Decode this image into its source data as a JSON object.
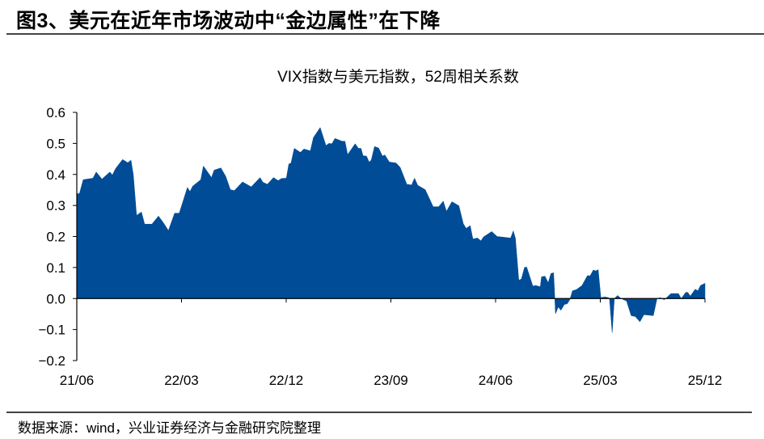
{
  "header": {
    "title": "图3、美元在近年市场波动中“金边属性”在下降"
  },
  "footer": {
    "source": "数据来源：wind，兴业证券经济与金融研究院整理"
  },
  "colors": {
    "area": "#004C97",
    "axis": "#000000"
  },
  "chart_data": {
    "type": "area",
    "title": "VIX指数与美元指数，52周相关系数",
    "xlabel": "",
    "ylabel": "",
    "x_unit": "decimal year",
    "xlim": [
      2021.417,
      2025.917
    ],
    "ylim": [
      -0.2,
      0.6
    ],
    "yticks": [
      -0.2,
      -0.1,
      0.0,
      0.1,
      0.2,
      0.3,
      0.4,
      0.5,
      0.6
    ],
    "ytick_labels": [
      "−0.2",
      "−0.1",
      "0.0",
      "0.1",
      "0.2",
      "0.3",
      "0.4",
      "0.5",
      "0.6"
    ],
    "xticks": [
      2021.417,
      2022.167,
      2022.917,
      2023.667,
      2024.417,
      2025.167,
      2025.917
    ],
    "xtick_labels": [
      "21/06",
      "22/03",
      "22/12",
      "23/09",
      "24/06",
      "25/03",
      "25/12"
    ],
    "grid": false,
    "legend": "none",
    "series": [
      {
        "name": "VIX指数与美元指数52周相关系数",
        "points": [
          [
            2021.417,
            0.338
          ],
          [
            2021.436,
            0.338
          ],
          [
            2021.463,
            0.383
          ],
          [
            2021.533,
            0.388
          ],
          [
            2021.556,
            0.408
          ],
          [
            2021.597,
            0.385
          ],
          [
            2021.654,
            0.408
          ],
          [
            2021.672,
            0.398
          ],
          [
            2021.695,
            0.419
          ],
          [
            2021.745,
            0.448
          ],
          [
            2021.782,
            0.438
          ],
          [
            2021.805,
            0.446
          ],
          [
            2021.822,
            0.399
          ],
          [
            2021.845,
            0.268
          ],
          [
            2021.88,
            0.279
          ],
          [
            2021.903,
            0.24
          ],
          [
            2021.955,
            0.24
          ],
          [
            2022.002,
            0.266
          ],
          [
            2022.041,
            0.242
          ],
          [
            2022.073,
            0.219
          ],
          [
            2022.118,
            0.275
          ],
          [
            2022.151,
            0.275
          ],
          [
            2022.209,
            0.358
          ],
          [
            2022.228,
            0.345
          ],
          [
            2022.247,
            0.362
          ],
          [
            2022.305,
            0.383
          ],
          [
            2022.324,
            0.427
          ],
          [
            2022.382,
            0.39
          ],
          [
            2022.401,
            0.414
          ],
          [
            2022.449,
            0.421
          ],
          [
            2022.484,
            0.394
          ],
          [
            2022.517,
            0.351
          ],
          [
            2022.546,
            0.348
          ],
          [
            2022.604,
            0.376
          ],
          [
            2022.666,
            0.36
          ],
          [
            2022.73,
            0.39
          ],
          [
            2022.749,
            0.375
          ],
          [
            2022.782,
            0.368
          ],
          [
            2022.826,
            0.39
          ],
          [
            2022.859,
            0.38
          ],
          [
            2022.884,
            0.387
          ],
          [
            2022.918,
            0.388
          ],
          [
            2022.936,
            0.434
          ],
          [
            2022.951,
            0.436
          ],
          [
            2022.975,
            0.484
          ],
          [
            2023.019,
            0.471
          ],
          [
            2023.044,
            0.482
          ],
          [
            2023.09,
            0.476
          ],
          [
            2023.112,
            0.519
          ],
          [
            2023.16,
            0.551
          ],
          [
            2023.202,
            0.493
          ],
          [
            2023.222,
            0.5
          ],
          [
            2023.245,
            0.499
          ],
          [
            2023.266,
            0.516
          ],
          [
            2023.318,
            0.507
          ],
          [
            2023.338,
            0.507
          ],
          [
            2023.357,
            0.464
          ],
          [
            2023.411,
            0.499
          ],
          [
            2023.434,
            0.484
          ],
          [
            2023.453,
            0.484
          ],
          [
            2023.468,
            0.46
          ],
          [
            2023.492,
            0.459
          ],
          [
            2023.511,
            0.44
          ],
          [
            2023.526,
            0.446
          ],
          [
            2023.55,
            0.49
          ],
          [
            2023.579,
            0.485
          ],
          [
            2023.607,
            0.459
          ],
          [
            2023.623,
            0.463
          ],
          [
            2023.656,
            0.44
          ],
          [
            2023.704,
            0.437
          ],
          [
            2023.733,
            0.423
          ],
          [
            2023.781,
            0.368
          ],
          [
            2023.816,
            0.366
          ],
          [
            2023.836,
            0.388
          ],
          [
            2023.859,
            0.365
          ],
          [
            2023.913,
            0.351
          ],
          [
            2023.97,
            0.296
          ],
          [
            2024.009,
            0.296
          ],
          [
            2024.042,
            0.314
          ],
          [
            2024.065,
            0.281
          ],
          [
            2024.104,
            0.312
          ],
          [
            2024.154,
            0.299
          ],
          [
            2024.186,
            0.241
          ],
          [
            2024.206,
            0.226
          ],
          [
            2024.235,
            0.235
          ],
          [
            2024.254,
            0.192
          ],
          [
            2024.287,
            0.195
          ],
          [
            2024.312,
            0.186
          ],
          [
            2024.331,
            0.199
          ],
          [
            2024.389,
            0.216
          ],
          [
            2024.428,
            0.2
          ],
          [
            2024.525,
            0.195
          ],
          [
            2024.544,
            0.218
          ],
          [
            2024.559,
            0.194
          ],
          [
            2024.583,
            0.059
          ],
          [
            2024.602,
            0.063
          ],
          [
            2024.625,
            0.101
          ],
          [
            2024.64,
            0.101
          ],
          [
            2024.684,
            0.04
          ],
          [
            2024.704,
            0.042
          ],
          [
            2024.737,
            0.038
          ],
          [
            2024.746,
            0.07
          ],
          [
            2024.771,
            0.072
          ],
          [
            2024.794,
            0.051
          ],
          [
            2024.814,
            0.081
          ],
          [
            2024.833,
            0.083
          ],
          [
            2024.846,
            -0.049
          ],
          [
            2024.866,
            -0.027
          ],
          [
            2024.885,
            -0.038
          ],
          [
            2024.91,
            -0.019
          ],
          [
            2024.93,
            -0.017
          ],
          [
            2024.949,
            -0.003
          ],
          [
            2024.968,
            0.025
          ],
          [
            2024.997,
            0.029
          ],
          [
            2025.036,
            0.042
          ],
          [
            2025.075,
            0.074
          ],
          [
            2025.094,
            0.073
          ],
          [
            2025.117,
            0.092
          ],
          [
            2025.133,
            0.089
          ],
          [
            2025.152,
            0.093
          ],
          [
            2025.171,
            0.003
          ],
          [
            2025.2,
            0.005
          ],
          [
            2025.225,
            0.003
          ],
          [
            2025.233,
            0.0
          ],
          [
            2025.252,
            -0.11
          ],
          [
            2025.268,
            0.0
          ],
          [
            2025.291,
            0.01
          ],
          [
            2025.316,
            0.0
          ],
          [
            2025.355,
            -0.008
          ],
          [
            2025.388,
            -0.055
          ],
          [
            2025.418,
            -0.058
          ],
          [
            2025.451,
            -0.075
          ],
          [
            2025.48,
            -0.052
          ],
          [
            2025.547,
            -0.055
          ],
          [
            2025.573,
            -0.001
          ],
          [
            2025.596,
            0.003
          ],
          [
            2025.625,
            -0.004
          ],
          [
            2025.673,
            0.016
          ],
          [
            2025.727,
            0.016
          ],
          [
            2025.747,
            0.0
          ],
          [
            2025.779,
            0.02
          ],
          [
            2025.793,
            0.02
          ],
          [
            2025.812,
            0.008
          ],
          [
            2025.847,
            0.03
          ],
          [
            2025.866,
            0.025
          ],
          [
            2025.885,
            0.042
          ],
          [
            2025.917,
            0.049
          ]
        ]
      }
    ]
  }
}
